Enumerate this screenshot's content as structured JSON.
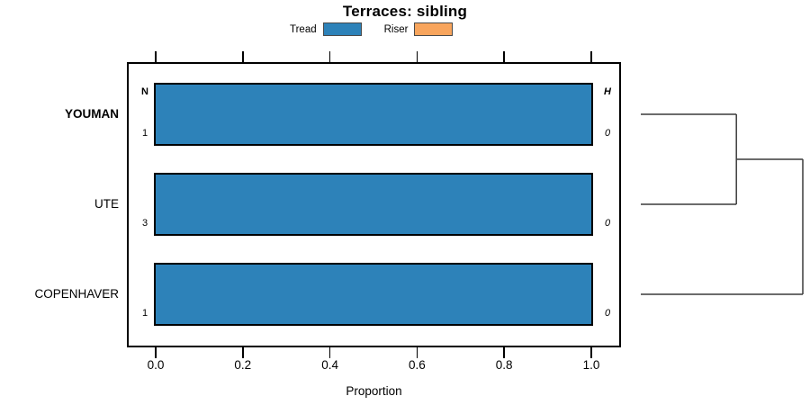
{
  "chart_data": {
    "type": "bar",
    "orientation": "horizontal",
    "title": "Terraces: sibling",
    "xlabel": "Proportion",
    "xlim": [
      0,
      1
    ],
    "grid": false,
    "legend_position": "top",
    "x_ticks": [
      {
        "label": "0.0",
        "value": 0.0
      },
      {
        "label": "0.2",
        "value": 0.2
      },
      {
        "label": "0.4",
        "value": 0.4
      },
      {
        "label": "0.6",
        "value": 0.6
      },
      {
        "label": "0.8",
        "value": 0.8
      },
      {
        "label": "1.0",
        "value": 1.0
      }
    ],
    "legend": [
      {
        "label": "Tread",
        "color": "#2d82b9"
      },
      {
        "label": "Riser",
        "color": "#f8a55d"
      }
    ],
    "columns": {
      "n_header": "N",
      "h_header": "H"
    },
    "rows": [
      {
        "label": "YOUMAN",
        "bold": true,
        "n": "1",
        "h": "0",
        "values": [
          1.0,
          0.0
        ]
      },
      {
        "label": "UTE",
        "bold": false,
        "n": "3",
        "h": "0",
        "values": [
          1.0,
          0.0
        ]
      },
      {
        "label": "COPENHAVER",
        "bold": false,
        "n": "1",
        "h": "0",
        "values": [
          1.0,
          0.0
        ]
      }
    ],
    "dendrogram": {
      "merges": [
        {
          "a": {
            "row": 0
          },
          "b": {
            "row": 1
          },
          "h": 0.59
        },
        {
          "a": {
            "merge": 0
          },
          "b": {
            "row": 2
          },
          "h": 1.0
        }
      ]
    }
  }
}
